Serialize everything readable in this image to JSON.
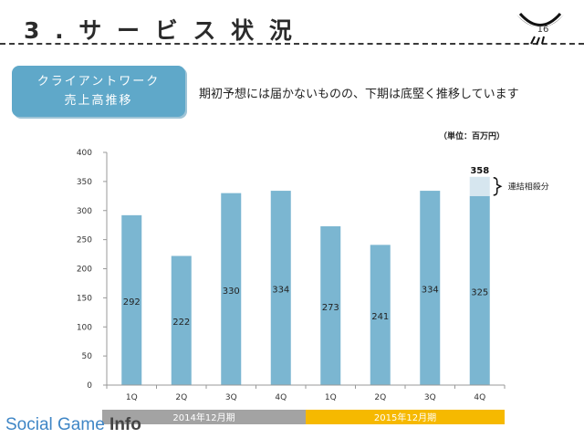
{
  "header": {
    "title": "3 . サ ー ビ ス 状 況",
    "page_number": "16"
  },
  "section": {
    "line1": "クライアントワーク",
    "line2": "売上高推移"
  },
  "subtitle": "期初予想には届かないものの、下期は底堅く推移しています",
  "brand": {
    "part1": "Social Game ",
    "part2": "Info"
  },
  "colors": {
    "bar": "#7bb6d1",
    "bar_extra": "#d6e6ef",
    "period1": "#a3a3a3",
    "period2": "#f6b900",
    "accent": "#5fa8c9"
  },
  "chart_data": {
    "type": "bar",
    "unit_label": "（単位：百万円）",
    "categories": [
      "1Q",
      "2Q",
      "3Q",
      "4Q",
      "1Q",
      "2Q",
      "3Q",
      "4Q"
    ],
    "values": [
      292,
      222,
      330,
      334,
      273,
      241,
      334,
      325
    ],
    "value_labels": [
      "292",
      "222",
      "330",
      "334",
      "273",
      "241",
      "334",
      "325"
    ],
    "stacked_extra": {
      "category_index": 7,
      "total": 358,
      "total_label": "358",
      "label": "連結相殺分"
    },
    "yticks": [
      0,
      50,
      100,
      150,
      200,
      250,
      300,
      350,
      400
    ],
    "ylim": [
      0,
      400
    ],
    "periods": [
      {
        "label": "2014年12月期",
        "start": 0,
        "end": 4
      },
      {
        "label": "2015年12月期",
        "start": 4,
        "end": 8
      }
    ],
    "grid": false
  }
}
